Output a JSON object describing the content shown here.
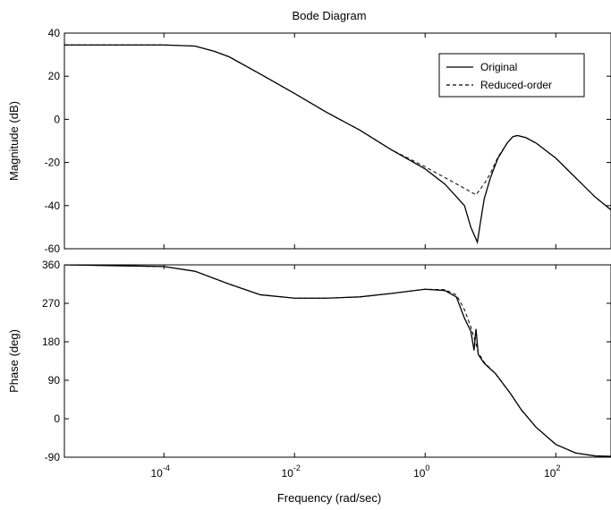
{
  "chart_data": {
    "type": "line",
    "title": "Bode Diagram",
    "xlabel": "Frequency  (rad/sec)",
    "x_scale": "log",
    "xlim": [
      3e-06,
      700
    ],
    "x_ticks": [
      {
        "value": 0.0001,
        "base": "10",
        "exp": "-4"
      },
      {
        "value": 0.01,
        "base": "10",
        "exp": "-2"
      },
      {
        "value": 1,
        "base": "10",
        "exp": "0"
      },
      {
        "value": 100,
        "base": "10",
        "exp": "2"
      }
    ],
    "legend": {
      "placement": "top-right",
      "entries": [
        {
          "label": "Original",
          "style": "solid"
        },
        {
          "label": "Reduced-order",
          "style": "dashed"
        }
      ]
    },
    "panels": [
      {
        "id": "magnitude",
        "ylabel": "Magnitude (dB)",
        "ylim": [
          -60,
          40
        ],
        "yticks": [
          {
            "value": 40,
            "label": "40"
          },
          {
            "value": 20,
            "label": "20"
          },
          {
            "value": 0,
            "label": "0"
          },
          {
            "value": -20,
            "label": "-20"
          },
          {
            "value": -40,
            "label": "-40"
          },
          {
            "value": -60,
            "label": "-60"
          }
        ],
        "series": [
          {
            "name": "Original",
            "style": "solid",
            "points": [
              [
                3e-06,
                34.5
              ],
              [
                0.0001,
                34.5
              ],
              [
                0.0003,
                34
              ],
              [
                0.0006,
                31.5
              ],
              [
                0.001,
                29
              ],
              [
                0.003,
                21
              ],
              [
                0.01,
                12
              ],
              [
                0.03,
                3.5
              ],
              [
                0.1,
                -5
              ],
              [
                0.3,
                -14
              ],
              [
                1,
                -23
              ],
              [
                2,
                -30
              ],
              [
                4,
                -40
              ],
              [
                5,
                -50
              ],
              [
                6.3,
                -57
              ],
              [
                7,
                -48
              ],
              [
                8,
                -37
              ],
              [
                10,
                -27
              ],
              [
                13,
                -18
              ],
              [
                18,
                -11
              ],
              [
                22,
                -8
              ],
              [
                26,
                -7.5
              ],
              [
                35,
                -8.5
              ],
              [
                50,
                -11
              ],
              [
                100,
                -18
              ],
              [
                200,
                -27
              ],
              [
                400,
                -36
              ],
              [
                700,
                -42
              ]
            ]
          },
          {
            "name": "Reduced-order",
            "style": "dashed",
            "points": [
              [
                3e-06,
                34.5
              ],
              [
                0.0001,
                34.5
              ],
              [
                0.0003,
                34
              ],
              [
                0.0006,
                31.5
              ],
              [
                0.001,
                29
              ],
              [
                0.003,
                21
              ],
              [
                0.01,
                12
              ],
              [
                0.03,
                3.5
              ],
              [
                0.1,
                -5
              ],
              [
                0.3,
                -14
              ],
              [
                1,
                -22
              ],
              [
                2,
                -27
              ],
              [
                4,
                -32
              ],
              [
                6,
                -35
              ],
              [
                8,
                -30
              ],
              [
                10,
                -25
              ],
              [
                13,
                -17.5
              ],
              [
                18,
                -11
              ],
              [
                22,
                -8
              ],
              [
                26,
                -7.5
              ],
              [
                35,
                -8.5
              ],
              [
                50,
                -11
              ],
              [
                100,
                -18
              ],
              [
                200,
                -27
              ],
              [
                400,
                -36
              ],
              [
                700,
                -42
              ]
            ]
          }
        ]
      },
      {
        "id": "phase",
        "ylabel": "Phase (deg)",
        "ylim": [
          -90,
          360
        ],
        "yticks": [
          {
            "value": 360,
            "label": "360"
          },
          {
            "value": 270,
            "label": "270"
          },
          {
            "value": 180,
            "label": "180"
          },
          {
            "value": 90,
            "label": "90"
          },
          {
            "value": 0,
            "label": "0"
          },
          {
            "value": -90,
            "label": "-90"
          }
        ],
        "series": [
          {
            "name": "Original",
            "style": "solid",
            "points": [
              [
                3e-06,
                360
              ],
              [
                0.0001,
                356
              ],
              [
                0.0003,
                345
              ],
              [
                0.001,
                315
              ],
              [
                0.003,
                290
              ],
              [
                0.01,
                282
              ],
              [
                0.03,
                282
              ],
              [
                0.1,
                285
              ],
              [
                0.3,
                293
              ],
              [
                1,
                303
              ],
              [
                2,
                300
              ],
              [
                3,
                285
              ],
              [
                4,
                235
              ],
              [
                5,
                205
              ],
              [
                5.6,
                160
              ],
              [
                6,
                210
              ],
              [
                6.5,
                150
              ],
              [
                8,
                130
              ],
              [
                12,
                105
              ],
              [
                20,
                60
              ],
              [
                30,
                20
              ],
              [
                50,
                -20
              ],
              [
                100,
                -60
              ],
              [
                200,
                -80
              ],
              [
                400,
                -87
              ],
              [
                700,
                -88
              ]
            ]
          },
          {
            "name": "Reduced-order",
            "style": "dashed",
            "points": [
              [
                3e-06,
                360
              ],
              [
                0.0001,
                356
              ],
              [
                0.0003,
                345
              ],
              [
                0.001,
                315
              ],
              [
                0.003,
                290
              ],
              [
                0.01,
                282
              ],
              [
                0.03,
                282
              ],
              [
                0.1,
                285
              ],
              [
                0.3,
                293
              ],
              [
                1,
                303
              ],
              [
                2,
                302
              ],
              [
                3,
                290
              ],
              [
                4,
                255
              ],
              [
                5,
                215
              ],
              [
                6,
                175
              ],
              [
                6.5,
                155
              ],
              [
                8,
                132
              ],
              [
                12,
                105
              ],
              [
                20,
                60
              ],
              [
                30,
                20
              ],
              [
                50,
                -20
              ],
              [
                100,
                -60
              ],
              [
                200,
                -80
              ],
              [
                400,
                -87
              ],
              [
                700,
                -88
              ]
            ]
          }
        ]
      }
    ]
  }
}
